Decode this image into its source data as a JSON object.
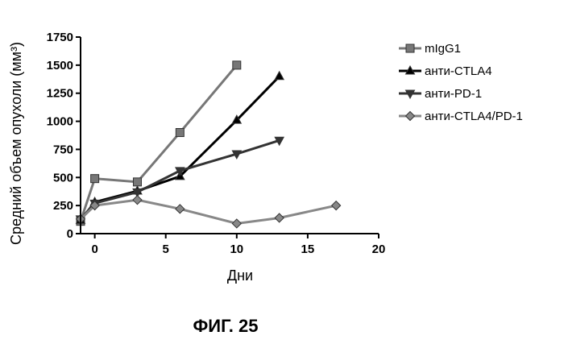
{
  "chart_data": {
    "type": "line",
    "title": "",
    "xlabel": "Дни",
    "ylabel": "Средний объем опухоли (мм³)",
    "xlim": [
      -1,
      20
    ],
    "ylim": [
      0,
      1750
    ],
    "xticks": [
      0,
      5,
      10,
      15,
      20
    ],
    "yticks": [
      0,
      250,
      500,
      750,
      1000,
      1250,
      1500,
      1750
    ],
    "grid": false,
    "legend_position": "right",
    "series": [
      {
        "name": "mIgG1",
        "marker": "square",
        "color": "#777777",
        "x": [
          -1,
          0,
          3,
          6,
          10
        ],
        "y": [
          110,
          490,
          460,
          900,
          1500
        ]
      },
      {
        "name": "анти-CTLA4",
        "marker": "triangle-up",
        "color": "#000000",
        "x": [
          -1,
          0,
          3,
          6,
          10,
          13
        ],
        "y": [
          120,
          280,
          380,
          510,
          1010,
          1400
        ]
      },
      {
        "name": "анти-PD-1",
        "marker": "triangle-down",
        "color": "#333333",
        "x": [
          -1,
          0,
          3,
          6,
          10,
          13
        ],
        "y": [
          130,
          270,
          370,
          560,
          710,
          830
        ]
      },
      {
        "name": "анти-CTLA4/PD-1",
        "marker": "diamond",
        "color": "#888888",
        "x": [
          -1,
          0,
          3,
          6,
          10,
          13,
          17
        ],
        "y": [
          130,
          250,
          300,
          220,
          90,
          140,
          250
        ]
      }
    ]
  },
  "figure_caption": "ФИГ. 25"
}
